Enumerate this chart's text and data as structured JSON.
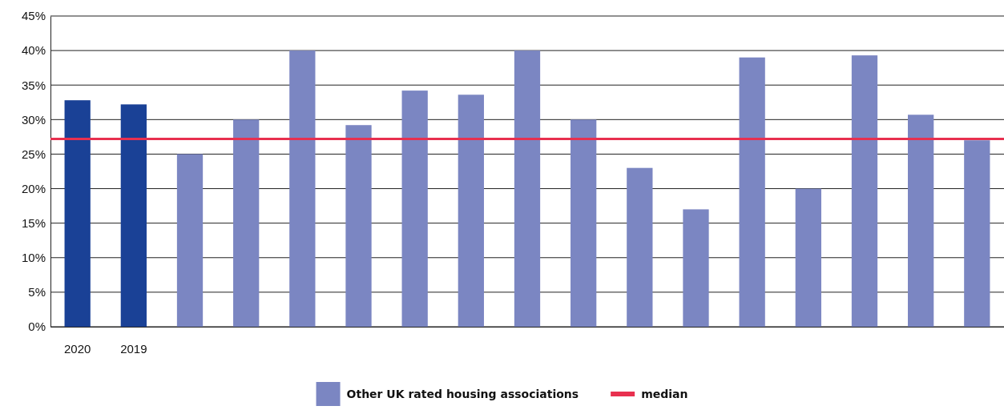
{
  "chart_data": {
    "type": "bar",
    "categories": [
      "2020",
      "2019",
      null,
      null,
      null,
      null,
      null,
      null,
      null,
      null,
      null,
      null,
      null,
      null,
      null,
      null,
      null
    ],
    "series": [
      {
        "color": "#1a4196",
        "values": [
          32.8,
          32.2,
          null,
          null,
          null,
          null,
          null,
          null,
          null,
          null,
          null,
          null,
          null,
          null,
          null,
          null,
          null
        ]
      },
      {
        "name": "Other UK rated housing associations",
        "color": "#7b86c2",
        "values": [
          null,
          null,
          25,
          30,
          40,
          29.2,
          34.2,
          33.6,
          40,
          30,
          23,
          17,
          39,
          20,
          39.3,
          30.7,
          27
        ]
      }
    ],
    "ylim": [
      0,
      45
    ],
    "yticks": [
      {
        "value": 0,
        "label": "0%"
      },
      {
        "value": 5,
        "label": "5%"
      },
      {
        "value": 10,
        "label": "10%"
      },
      {
        "value": 15,
        "label": "15%"
      },
      {
        "value": 20,
        "label": "20%"
      },
      {
        "value": 25,
        "label": "25%"
      },
      {
        "value": 30,
        "label": "30%"
      },
      {
        "value": 35,
        "label": "35%"
      },
      {
        "value": 40,
        "label": "40%"
      },
      {
        "value": 45,
        "label": "45%"
      }
    ],
    "grid": "y",
    "ref_lines": [
      {
        "axis": "y",
        "value": 27.2,
        "label": "median",
        "color": "#e8304f"
      }
    ],
    "legend": "bottom"
  }
}
